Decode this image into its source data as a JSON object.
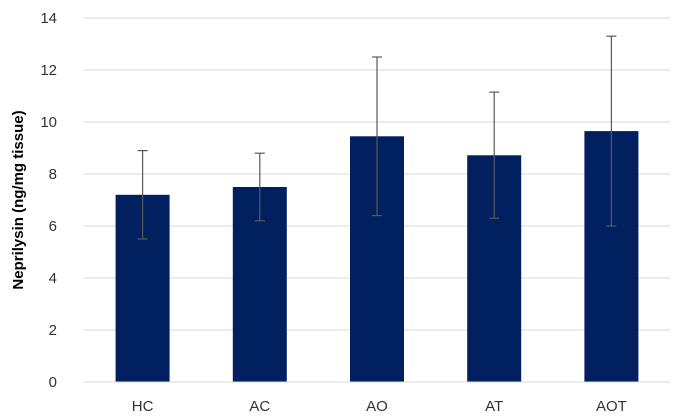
{
  "chart_data": {
    "type": "bar",
    "title": "",
    "xlabel": "",
    "ylabel": "Neprilysin (ng/mg tissue)",
    "categories": [
      "HC",
      "AC",
      "AO",
      "AT",
      "AOT"
    ],
    "values": [
      7.2,
      7.5,
      9.45,
      8.72,
      9.65
    ],
    "error_low": [
      5.5,
      6.2,
      6.4,
      6.3,
      6.0
    ],
    "error_high": [
      8.9,
      8.8,
      12.5,
      11.15,
      13.3
    ],
    "ylim": [
      0,
      14
    ],
    "yticks": [
      "0",
      "2",
      "4",
      "6",
      "8",
      "10",
      "12",
      "14"
    ],
    "ytick_values": [
      0,
      2,
      4,
      6,
      8,
      10,
      12,
      14
    ],
    "grid": true,
    "legend": "none",
    "bar_color": "#002060",
    "errorbar_color": "#595959",
    "grid_color": "#d9d9d9"
  }
}
